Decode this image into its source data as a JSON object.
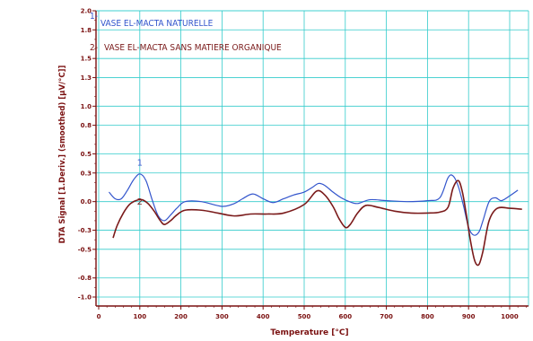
{
  "chart_data": {
    "type": "line",
    "title": "",
    "xlabel": "Temperature  [°C]",
    "ylabel": "DTA Signal [1.Deriv.] (smoothed)  [µV/°C]]",
    "xlim": [
      0,
      1050
    ],
    "ylim": [
      -1.05,
      2.0
    ],
    "x_ticks": [
      0,
      100,
      200,
      300,
      400,
      500,
      600,
      700,
      800,
      900,
      1000
    ],
    "y_ticks": [
      -1.0,
      -0.8,
      -0.5,
      -0.3,
      0.0,
      0.3,
      0.5,
      0.8,
      1.0,
      1.3,
      1.5,
      1.8,
      2.0
    ],
    "y_tick_labels": [
      "-1.0",
      "-0.8",
      "-0.5",
      "-0.3",
      "0.0",
      "0.3",
      "0.5",
      "0.8",
      "1.0",
      "1.3",
      "1.5",
      "1.8",
      "2.0"
    ],
    "grid": true,
    "colors": {
      "axis": "#7a1010",
      "grid": "#33cccc",
      "series1": "#3355cc",
      "series2": "#7a1a1a"
    },
    "legend": [
      {
        "number": "1-",
        "text": "VASE EL-MACTA NATURELLE",
        "color": "#3355cc"
      },
      {
        "number": "2-",
        "text": "VASE EL-MACTA SANS MATIERE ORGANIQUE",
        "color": "#7a1a1a"
      }
    ],
    "curve_labels": [
      {
        "text": "1",
        "x": 100,
        "y": 0.38,
        "color": "#3355cc"
      },
      {
        "text": "2",
        "x": 100,
        "y": -0.03,
        "color": "#7a1a1a"
      }
    ],
    "series": [
      {
        "name": "1",
        "color": "#3355cc",
        "x": [
          25,
          40,
          55,
          70,
          85,
          100,
          115,
          130,
          145,
          160,
          175,
          190,
          210,
          250,
          300,
          330,
          350,
          375,
          400,
          425,
          450,
          475,
          500,
          520,
          535,
          550,
          570,
          590,
          610,
          630,
          660,
          700,
          750,
          800,
          830,
          850,
          862,
          875,
          888,
          900,
          912,
          925,
          935,
          950,
          965,
          980,
          1000,
          1020
        ],
        "y": [
          0.1,
          0.03,
          0.03,
          0.12,
          0.23,
          0.29,
          0.22,
          0.02,
          -0.15,
          -0.2,
          -0.14,
          -0.07,
          0.0,
          0.0,
          -0.05,
          -0.02,
          0.03,
          0.08,
          0.03,
          -0.01,
          0.03,
          0.07,
          0.1,
          0.15,
          0.19,
          0.17,
          0.1,
          0.04,
          0.0,
          -0.02,
          0.02,
          0.01,
          0.0,
          0.01,
          0.04,
          0.25,
          0.27,
          0.16,
          -0.05,
          -0.27,
          -0.35,
          -0.32,
          -0.2,
          0.0,
          0.04,
          0.01,
          0.06,
          0.12
        ]
      },
      {
        "name": "2",
        "color": "#7a1a1a",
        "x": [
          35,
          45,
          60,
          75,
          90,
          105,
          120,
          135,
          150,
          160,
          175,
          190,
          210,
          250,
          290,
          330,
          370,
          410,
          450,
          500,
          530,
          550,
          570,
          585,
          600,
          612,
          630,
          650,
          680,
          720,
          760,
          800,
          830,
          850,
          862,
          875,
          885,
          895,
          905,
          915,
          925,
          935,
          950,
          970,
          1000,
          1030
        ],
        "y": [
          -0.38,
          -0.25,
          -0.12,
          -0.03,
          0.01,
          0.02,
          -0.02,
          -0.1,
          -0.2,
          -0.24,
          -0.2,
          -0.14,
          -0.09,
          -0.09,
          -0.12,
          -0.15,
          -0.13,
          -0.13,
          -0.12,
          -0.03,
          0.11,
          0.07,
          -0.05,
          -0.18,
          -0.27,
          -0.24,
          -0.12,
          -0.04,
          -0.06,
          -0.1,
          -0.12,
          -0.12,
          -0.11,
          -0.06,
          0.14,
          0.22,
          0.1,
          -0.15,
          -0.42,
          -0.62,
          -0.66,
          -0.52,
          -0.2,
          -0.07,
          -0.07,
          -0.08
        ]
      }
    ]
  }
}
